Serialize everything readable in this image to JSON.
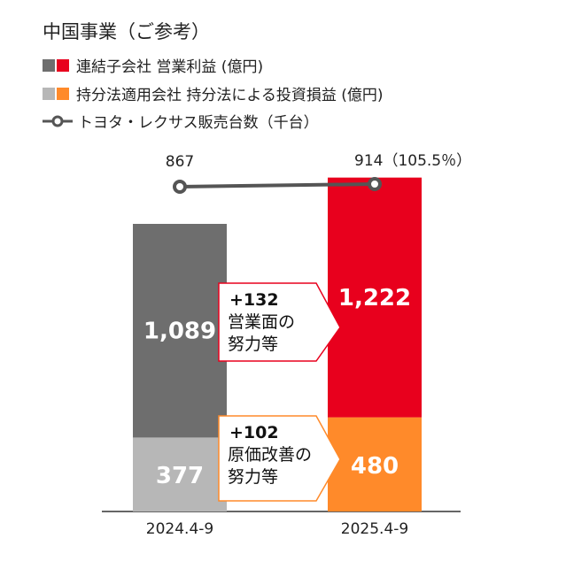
{
  "title": "中国事業（ご参考）",
  "legend": [
    {
      "label": "連結子会社 営業利益 (億円)",
      "colors": [
        "#6e6e6e",
        "#e8001d"
      ]
    },
    {
      "label": "持分法適用会社 持分法による投資損益 (億円)",
      "colors": [
        "#b7b7b7",
        "#ff8a2a"
      ]
    },
    {
      "label": "トヨタ・レクサス販売台数（千台）",
      "line_color": "#555555"
    }
  ],
  "chart_data": {
    "type": "bar",
    "stacked": true,
    "categories": [
      "2024.4-9",
      "2025.4-9"
    ],
    "series": [
      {
        "name": "連結子会社 営業利益 (億円)",
        "values": [
          1089,
          1222
        ],
        "colors": [
          "#6e6e6e",
          "#e8001d"
        ]
      },
      {
        "name": "持分法適用会社 持分法による投資損益 (億円)",
        "values": [
          377,
          480
        ],
        "colors": [
          "#b7b7b7",
          "#ff8a2a"
        ]
      }
    ],
    "bar_labels": {
      "top": [
        "1,089",
        "1,222"
      ],
      "bottom": [
        "377",
        "480"
      ]
    },
    "line": {
      "name": "トヨタ・レクサス販売台数（千台）",
      "values": [
        867,
        914
      ],
      "labels": [
        "867",
        "914（105.5％）"
      ],
      "color": "#555555"
    },
    "annotations": [
      {
        "delta": "+132",
        "lines": [
          "営業面の",
          "努力等"
        ],
        "border_color": "#e8001d"
      },
      {
        "delta": "+102",
        "lines": [
          "原価改善の",
          "努力等"
        ],
        "border_color": "#ff8a2a"
      }
    ],
    "ylim": [
      0,
      1800
    ]
  }
}
